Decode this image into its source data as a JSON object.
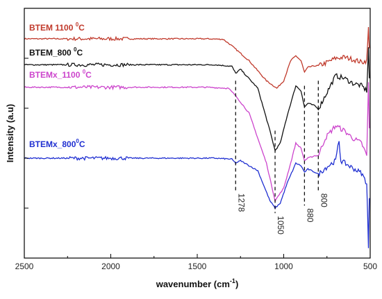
{
  "chart_data": {
    "type": "line",
    "xlabel": "wavenumber (cm",
    "xlabel_sup": "-1",
    "xlabel_end": ")",
    "ylabel": "Intensity (a.u)",
    "xlim": [
      2500,
      500
    ],
    "x_ticks": [
      2500,
      2000,
      1500,
      1000,
      500
    ],
    "x_tick_labels": [
      "2500",
      "2000",
      "1500",
      "1000",
      "500"
    ],
    "y_ticks": [
      0,
      1,
      2,
      3,
      4
    ],
    "ylim": [
      0,
      5
    ],
    "grid": false,
    "series": [
      {
        "name": "BTEM 1100 °C",
        "label_main": "BTEM 1100 ",
        "label_sup": "0",
        "label_end": "C",
        "color": "#c0392b",
        "points": [
          [
            2500,
            4.39
          ],
          [
            2200,
            4.39
          ],
          [
            2000,
            4.39
          ],
          [
            1700,
            4.39
          ],
          [
            1450,
            4.39
          ],
          [
            1350,
            4.38
          ],
          [
            1300,
            4.25
          ],
          [
            1200,
            3.95
          ],
          [
            1100,
            3.55
          ],
          [
            1040,
            3.4
          ],
          [
            1000,
            3.55
          ],
          [
            960,
            3.95
          ],
          [
            930,
            4.05
          ],
          [
            900,
            3.95
          ],
          [
            880,
            3.72
          ],
          [
            860,
            3.82
          ],
          [
            820,
            3.85
          ],
          [
            800,
            3.85
          ],
          [
            760,
            3.9
          ],
          [
            700,
            4.0
          ],
          [
            650,
            4.02
          ],
          [
            600,
            3.98
          ],
          [
            550,
            3.92
          ],
          [
            520,
            3.95
          ],
          [
            510,
            4.6
          ],
          [
            505,
            4.2
          ]
        ]
      },
      {
        "name": "BTEM_800 °C",
        "label_main": "BTEM_800 ",
        "label_sup": "0",
        "label_end": "C",
        "color": "#111111",
        "points": [
          [
            2500,
            3.87
          ],
          [
            2200,
            3.87
          ],
          [
            2000,
            3.87
          ],
          [
            1700,
            3.87
          ],
          [
            1400,
            3.87
          ],
          [
            1300,
            3.84
          ],
          [
            1278,
            3.7
          ],
          [
            1250,
            3.78
          ],
          [
            1150,
            3.4
          ],
          [
            1080,
            2.55
          ],
          [
            1050,
            2.15
          ],
          [
            1020,
            2.3
          ],
          [
            980,
            2.85
          ],
          [
            930,
            3.45
          ],
          [
            900,
            3.35
          ],
          [
            880,
            3.02
          ],
          [
            860,
            3.1
          ],
          [
            820,
            3.05
          ],
          [
            800,
            2.98
          ],
          [
            760,
            3.25
          ],
          [
            700,
            3.65
          ],
          [
            650,
            3.6
          ],
          [
            600,
            3.5
          ],
          [
            550,
            3.45
          ],
          [
            520,
            3.35
          ],
          [
            510,
            4.2
          ],
          [
            505,
            3.6
          ]
        ]
      },
      {
        "name": "BTEMx_1100 °C",
        "label_main": "BTEMx_1100 ",
        "label_sup": "0",
        "label_end": "C",
        "color": "#cc44cc",
        "points": [
          [
            2500,
            3.42
          ],
          [
            2200,
            3.42
          ],
          [
            2000,
            3.42
          ],
          [
            1700,
            3.42
          ],
          [
            1450,
            3.42
          ],
          [
            1320,
            3.4
          ],
          [
            1278,
            3.25
          ],
          [
            1200,
            2.9
          ],
          [
            1100,
            1.9
          ],
          [
            1050,
            1.15
          ],
          [
            1000,
            1.4
          ],
          [
            960,
            1.9
          ],
          [
            930,
            2.3
          ],
          [
            900,
            2.2
          ],
          [
            880,
            1.95
          ],
          [
            860,
            2.0
          ],
          [
            820,
            2.05
          ],
          [
            800,
            2.05
          ],
          [
            760,
            2.4
          ],
          [
            700,
            2.65
          ],
          [
            650,
            2.55
          ],
          [
            600,
            2.4
          ],
          [
            550,
            2.3
          ],
          [
            520,
            2.05
          ],
          [
            510,
            3.5
          ],
          [
            505,
            2.6
          ]
        ]
      },
      {
        "name": "BTEMx_800°C",
        "label_main": "BTEMx_800",
        "label_sup": "0",
        "label_end": "C",
        "color": "#1f2fd1",
        "points": [
          [
            2500,
            2.0
          ],
          [
            2200,
            2.0
          ],
          [
            2000,
            2.0
          ],
          [
            1700,
            2.0
          ],
          [
            1400,
            2.0
          ],
          [
            1300,
            1.98
          ],
          [
            1278,
            1.9
          ],
          [
            1250,
            1.95
          ],
          [
            1150,
            1.75
          ],
          [
            1080,
            1.15
          ],
          [
            1050,
            1.0
          ],
          [
            1020,
            1.1
          ],
          [
            980,
            1.5
          ],
          [
            930,
            1.9
          ],
          [
            900,
            1.85
          ],
          [
            880,
            1.72
          ],
          [
            860,
            1.78
          ],
          [
            820,
            1.72
          ],
          [
            800,
            1.68
          ],
          [
            760,
            1.8
          ],
          [
            700,
            1.95
          ],
          [
            680,
            2.35
          ],
          [
            670,
            1.95
          ],
          [
            600,
            1.8
          ],
          [
            550,
            1.7
          ],
          [
            520,
            1.5
          ],
          [
            510,
            0.2
          ],
          [
            505,
            1.2
          ]
        ]
      }
    ],
    "peak_markers": [
      {
        "x": 1278,
        "label": "1278",
        "y_top": 3.55,
        "y_bottom": 1.35
      },
      {
        "x": 1050,
        "label": "1050",
        "y_top": 2.55,
        "y_bottom": 0.9
      },
      {
        "x": 880,
        "label": "880",
        "y_top": 3.45,
        "y_bottom": 1.05
      },
      {
        "x": 800,
        "label": "800",
        "y_top": 3.55,
        "y_bottom": 1.35
      }
    ]
  }
}
